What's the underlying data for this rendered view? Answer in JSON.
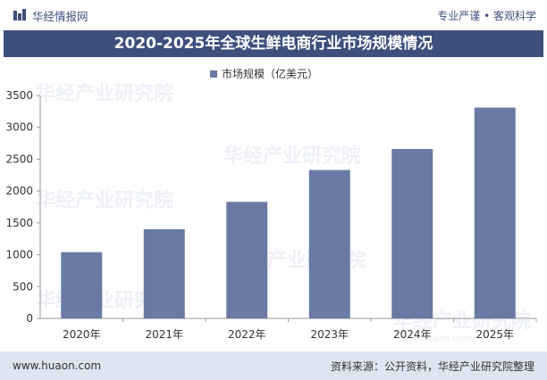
{
  "header": {
    "brand_name": "华经情报网",
    "slogan": "专业严谨 • 客观科学",
    "logo_icon": "bar-chart-logo-icon",
    "brand_color": "#3e4f7e"
  },
  "watermark": {
    "text": "华经产业研究院",
    "url_text": "www.huaon.com"
  },
  "footer": {
    "website": "www.huaon.com",
    "source": "资料来源：公开资料，华经产业研究院整理",
    "background": "#dde5f1"
  },
  "chart_data": {
    "type": "bar",
    "title": "2020-2025年全球生鲜电商行业市场规模情况",
    "categories": [
      "2020年",
      "2021年",
      "2022年",
      "2023年",
      "2024年",
      "2025年"
    ],
    "series": [
      {
        "name": "市场规模（亿美元）",
        "values": [
          1040,
          1400,
          1830,
          2330,
          2660,
          3310
        ],
        "color": "#6a7aa5"
      }
    ],
    "xlabel": "",
    "ylabel": "",
    "ylim": [
      0,
      3500
    ],
    "yticks": [
      0,
      500,
      1000,
      1500,
      2000,
      2500,
      3000,
      3500
    ],
    "grid": false,
    "legend_position": "top-center"
  }
}
